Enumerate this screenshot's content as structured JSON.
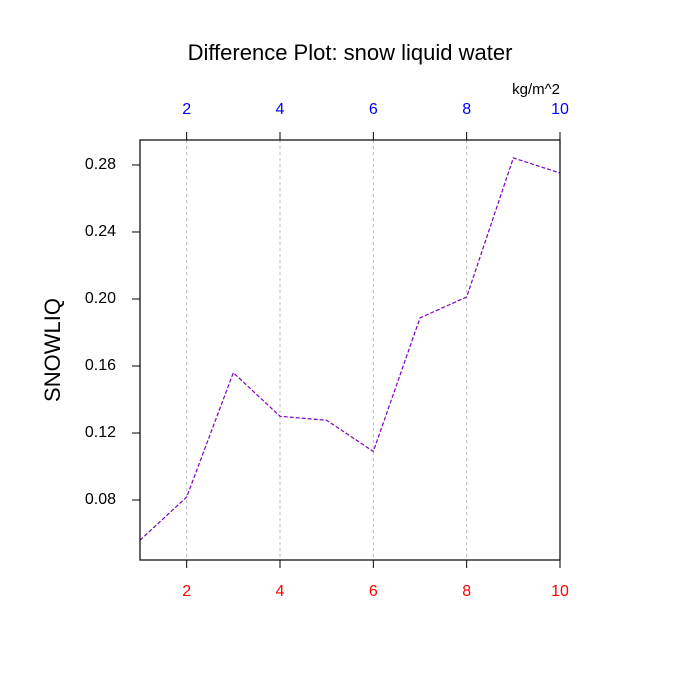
{
  "chart_data": {
    "type": "line",
    "title": "Difference Plot: snow liquid water",
    "ylabel": "SNOWLIQ",
    "top_axis_label": "kg/m^2",
    "x": [
      1,
      2,
      3,
      4,
      5,
      6,
      7,
      8,
      9,
      10
    ],
    "series": [
      {
        "color": "#8000c0",
        "values": [
          0.056,
          0.0818,
          0.156,
          0.13,
          0.1276,
          0.109,
          0.1887,
          0.2012,
          0.2842,
          0.2752
        ]
      }
    ],
    "xlim": [
      1,
      10
    ],
    "xticks": [
      2,
      4,
      6,
      8,
      10
    ],
    "ylim": [
      0.0442,
      0.2949
    ],
    "yticks": [
      0.08,
      0.12,
      0.16,
      {
        "value": 0.2,
        "label": "0.20"
      },
      0.24,
      0.28
    ],
    "bottom_tick_label_color": "#ff0000",
    "top_tick_label_color": "#0000ff",
    "vertical_grid": true,
    "dashed_line": true
  }
}
